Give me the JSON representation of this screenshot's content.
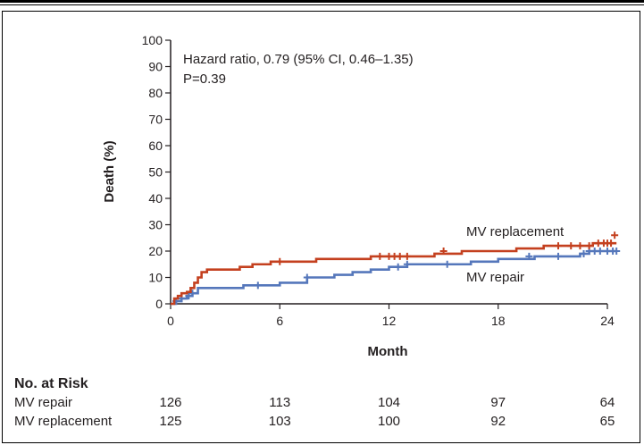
{
  "chart_data": {
    "type": "line",
    "xlabel": "Month",
    "ylabel": "Death (%)",
    "xlim": [
      0,
      24
    ],
    "ylim": [
      0,
      100
    ],
    "x_ticks": [
      0,
      6,
      12,
      18,
      24
    ],
    "y_ticks": [
      0,
      10,
      20,
      30,
      40,
      50,
      60,
      70,
      80,
      90,
      100
    ],
    "grid": false,
    "annotations": [
      "Hazard ratio, 0.79 (95% CI, 0.46–1.35)",
      "P=0.39"
    ],
    "series": [
      {
        "name": "MV replacement",
        "color": "#c4401f",
        "x": [
          0,
          0.2,
          0.4,
          0.6,
          0.9,
          1.1,
          1.3,
          1.5,
          1.7,
          2.0,
          3.0,
          3.8,
          4.5,
          5.5,
          6.5,
          8.0,
          9.5,
          11.0,
          13.0,
          14.5,
          16.0,
          17.5,
          19.0,
          20.5,
          21.5,
          22.5,
          23.2,
          24.0,
          24.5
        ],
        "y": [
          0,
          2,
          3,
          4,
          4.5,
          6,
          8,
          10,
          12,
          13,
          13,
          14,
          15,
          16,
          16,
          17,
          17,
          18,
          18,
          19,
          20,
          20,
          21,
          22,
          22,
          22,
          23,
          23,
          23
        ],
        "censor_x": [
          6.0,
          11.5,
          12.0,
          12.3,
          12.6,
          13.0,
          15.0,
          21.3,
          22.0,
          22.5,
          23.0,
          23.5,
          23.8,
          24.0,
          24.2,
          24.4
        ],
        "censor_y": [
          16,
          18,
          18,
          18,
          18,
          18,
          20,
          22,
          22,
          22,
          22,
          23,
          23,
          23,
          23,
          26
        ]
      },
      {
        "name": "MV repair",
        "color": "#5577bb",
        "x": [
          0,
          0.3,
          0.6,
          0.9,
          1.2,
          1.5,
          2.5,
          4.0,
          5.0,
          6.0,
          7.5,
          9.0,
          10.0,
          11.0,
          12.0,
          13.0,
          15.0,
          16.5,
          18.0,
          20.0,
          21.5,
          22.5,
          23.0,
          23.5,
          24.0,
          24.5
        ],
        "y": [
          0,
          1,
          2,
          3,
          4,
          6,
          6,
          7,
          7,
          8,
          10,
          11,
          12,
          13,
          14,
          15,
          15,
          16,
          17,
          18,
          18,
          19,
          20,
          20,
          20,
          20
        ],
        "censor_x": [
          0.3,
          0.6,
          1.0,
          1.2,
          4.8,
          7.5,
          12.5,
          13.0,
          15.2,
          19.7,
          21.3,
          22.7,
          23.0,
          23.3,
          23.6,
          24.0,
          24.3,
          24.5
        ],
        "censor_y": [
          1,
          2,
          3,
          4,
          7,
          10,
          14,
          15,
          15,
          18,
          18,
          19,
          20,
          20,
          20,
          20,
          20,
          20
        ]
      }
    ]
  },
  "risk_table": {
    "title": "No. at Risk",
    "rows": [
      {
        "label": "MV repair",
        "counts": [
          "126",
          "113",
          "104",
          "97",
          "64"
        ]
      },
      {
        "label": "MV replacement",
        "counts": [
          "125",
          "103",
          "100",
          "92",
          "65"
        ]
      }
    ]
  }
}
